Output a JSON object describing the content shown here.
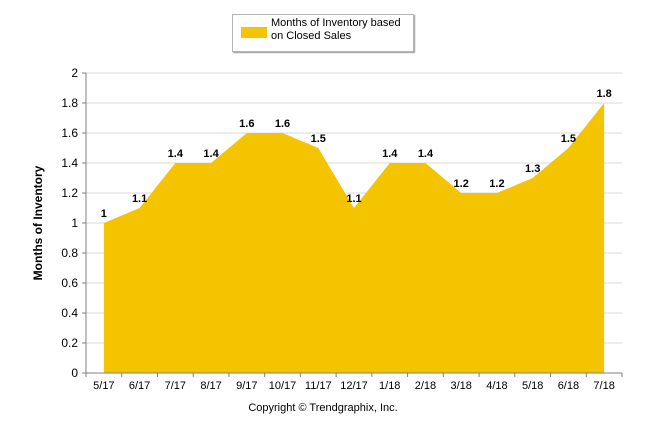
{
  "chart_data": {
    "type": "area",
    "categories": [
      "5/17",
      "6/17",
      "7/17",
      "8/17",
      "9/17",
      "10/17",
      "11/17",
      "12/17",
      "1/18",
      "2/18",
      "3/18",
      "4/18",
      "5/18",
      "6/18",
      "7/18"
    ],
    "series": [
      {
        "name": "Months of Inventory based on Closed Sales",
        "values": [
          1,
          1.1,
          1.4,
          1.4,
          1.6,
          1.6,
          1.5,
          1.1,
          1.4,
          1.4,
          1.2,
          1.2,
          1.3,
          1.5,
          1.8
        ],
        "labels": [
          "1",
          "1.1",
          "1.4",
          "1.4",
          "1.6",
          "1.6",
          "1.5",
          "1.1",
          "1.4",
          "1.4",
          "1.2",
          "1.2",
          "1.3",
          "1.5",
          "1.8"
        ]
      }
    ],
    "ylabel": "Months of Inventory",
    "xlabel": "",
    "ylim": [
      0,
      2
    ],
    "yticks": [
      "0",
      "0.2",
      "0.4",
      "0.6",
      "0.8",
      "1",
      "1.2",
      "1.4",
      "1.6",
      "1.8",
      "2"
    ],
    "grid": true,
    "legend_position": "top-center",
    "colors": {
      "area": "#F5C400",
      "grid": "#d9d9d9",
      "axis": "#808080"
    }
  },
  "legend": {
    "label": "Months of Inventory based on Closed Sales"
  },
  "footer": {
    "caption": "Copyright © Trendgraphix, Inc."
  }
}
